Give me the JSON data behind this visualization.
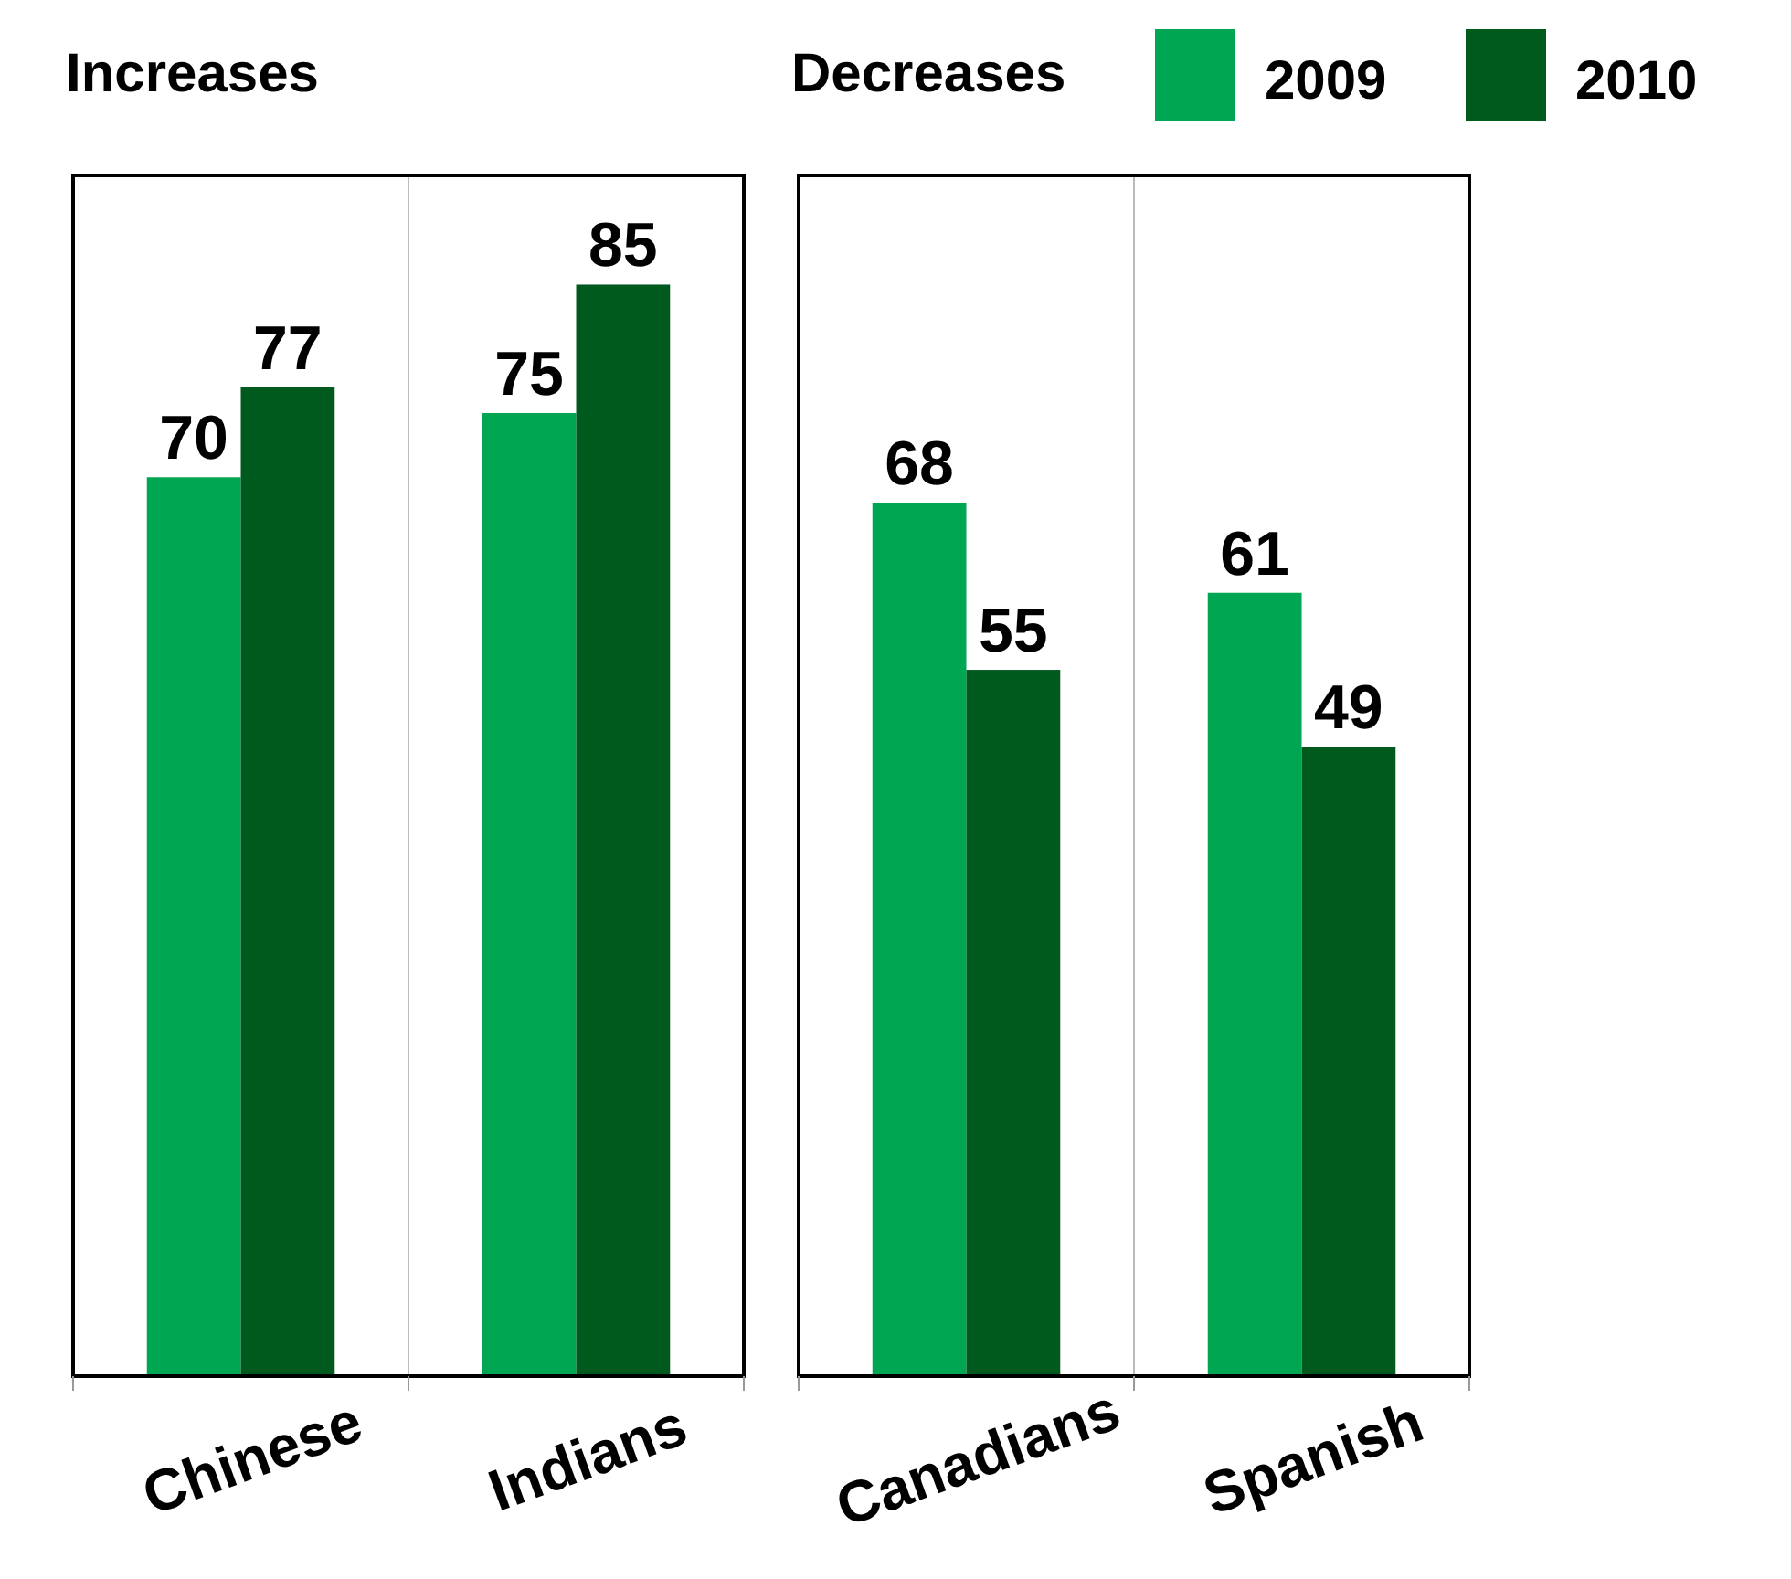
{
  "chart_data": [
    {
      "type": "bar",
      "title": "Increases",
      "categories": [
        "Chinese",
        "Indians"
      ],
      "series": [
        {
          "color": "#00a651",
          "values": [
            70,
            75
          ]
        },
        {
          "color": "#005a1e",
          "values": [
            77,
            85
          ]
        }
      ],
      "data_labels": true,
      "grid": "x",
      "legend": false
    },
    {
      "type": "bar",
      "title": "Decreases",
      "categories": [
        "Canadians",
        "Spanish"
      ],
      "series": [
        {
          "name": "2009",
          "color": "#00a651",
          "values": [
            68,
            61
          ]
        },
        {
          "name": "2010",
          "color": "#005a1e",
          "values": [
            55,
            49
          ]
        }
      ],
      "data_labels": true,
      "grid": "x",
      "legend": "top right"
    }
  ]
}
